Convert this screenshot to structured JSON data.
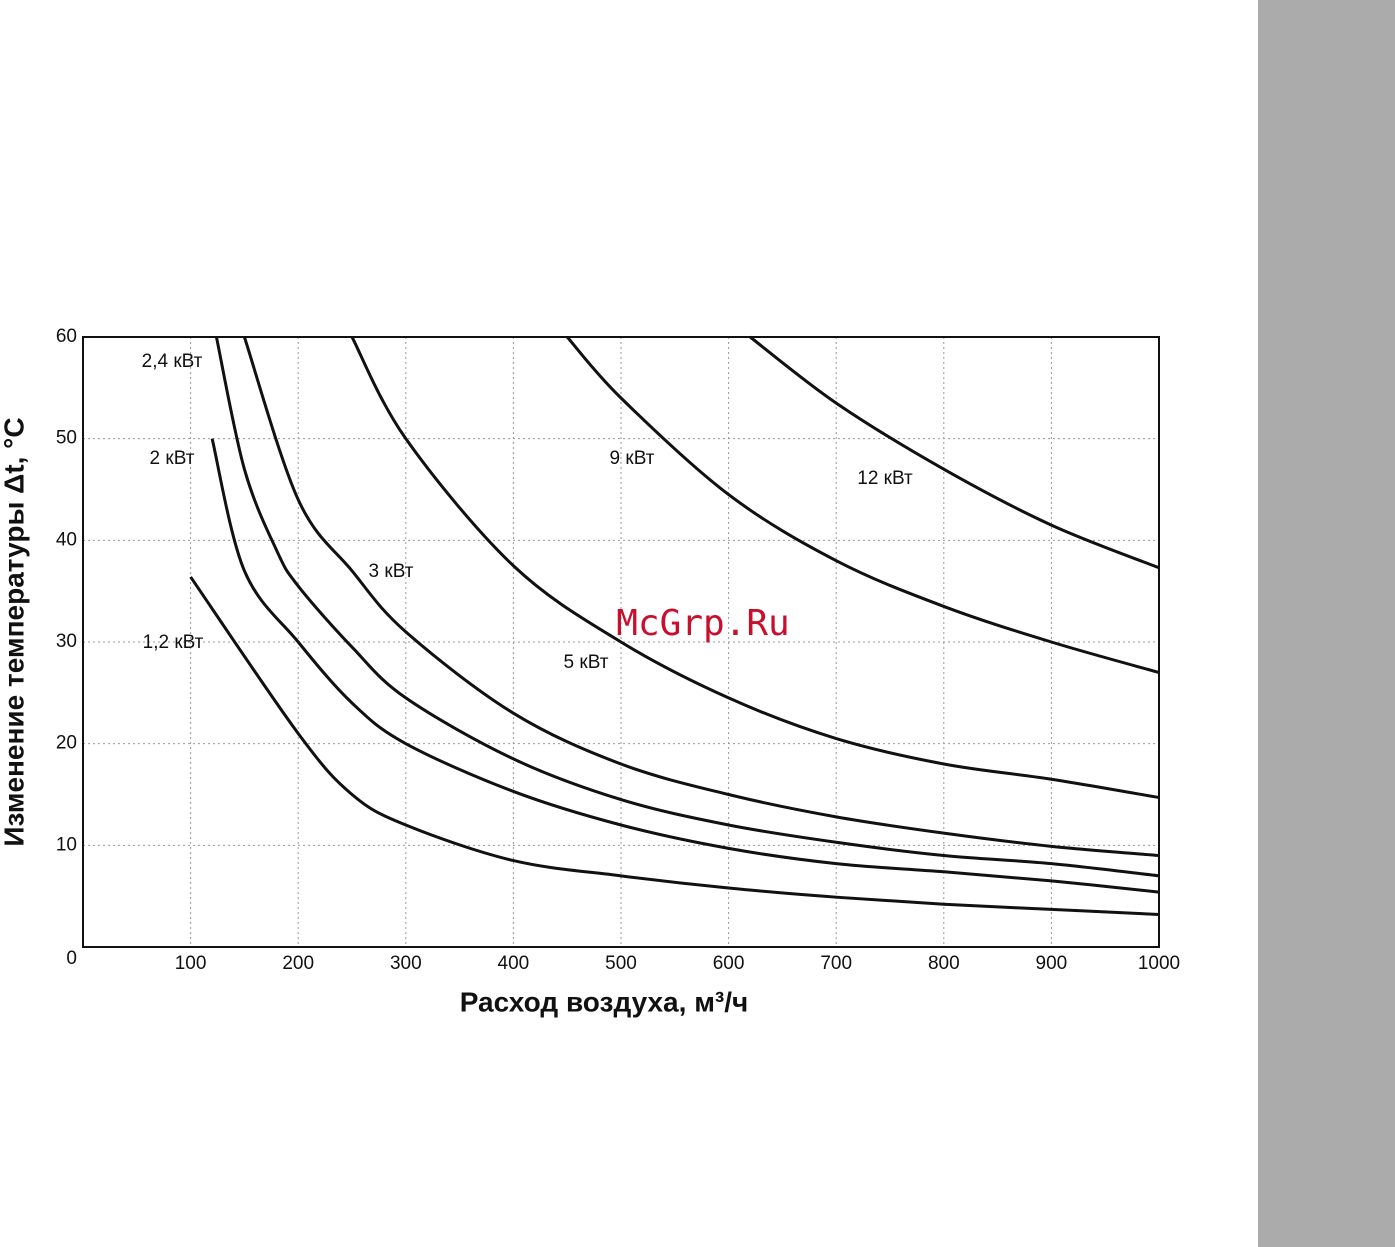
{
  "chart_data": {
    "type": "line",
    "x_label": "Расход воздуха, м³/ч",
    "y_label": "Изменение температуры Δt, °C",
    "watermark": "McGrp.Ru",
    "xlim": [
      0,
      1000
    ],
    "ylim": [
      0,
      60
    ],
    "xticks": [
      100,
      200,
      300,
      400,
      500,
      600,
      700,
      800,
      900,
      1000
    ],
    "yticks": [
      0,
      10,
      20,
      30,
      40,
      50,
      60
    ],
    "grid": true,
    "series": [
      {
        "name": "1,2 кВт",
        "color": "#111111",
        "x": [
          100,
          200,
          250,
          300,
          400,
          500,
          600,
          700,
          800,
          900,
          1000
        ],
        "values": [
          36.4,
          21,
          15,
          12,
          8.5,
          7,
          5.8,
          4.9,
          4.2,
          3.7,
          3.2
        ]
      },
      {
        "name": "2 кВт",
        "color": "#111111",
        "x": [
          120,
          150,
          200,
          250,
          300,
          400,
          500,
          600,
          700,
          800,
          900,
          1000
        ],
        "values": [
          50,
          37,
          30,
          24,
          20,
          15.3,
          12,
          9.7,
          8.2,
          7.4,
          6.5,
          5.4
        ]
      },
      {
        "name": "2,4 кВт",
        "color": "#111111",
        "x": [
          124,
          150,
          180,
          200,
          250,
          300,
          400,
          500,
          600,
          700,
          800,
          900,
          1000
        ],
        "values": [
          60,
          47,
          39,
          35.5,
          29.5,
          24.5,
          18.5,
          14.5,
          12,
          10.3,
          9,
          8.2,
          7
        ]
      },
      {
        "name": "3 кВт",
        "color": "#111111",
        "x": [
          150,
          200,
          250,
          300,
          400,
          500,
          600,
          700,
          800,
          900,
          1000
        ],
        "values": [
          60,
          44,
          37,
          31,
          23,
          18,
          15,
          12.8,
          11.2,
          9.9,
          9
        ]
      },
      {
        "name": "5 кВт",
        "color": "#111111",
        "x": [
          250,
          300,
          400,
          500,
          600,
          700,
          800,
          900,
          1000
        ],
        "values": [
          60,
          50,
          37.5,
          30,
          24.5,
          20.5,
          18,
          16.5,
          14.7
        ]
      },
      {
        "name": "9 кВт",
        "color": "#111111",
        "x": [
          450,
          500,
          600,
          700,
          800,
          900,
          1000
        ],
        "values": [
          60,
          54,
          44.5,
          38,
          33.5,
          30,
          27
        ]
      },
      {
        "name": "12 кВт",
        "color": "#111111",
        "x": [
          620,
          700,
          800,
          900,
          1000
        ],
        "values": [
          60,
          53.5,
          47,
          41.5,
          37.3
        ]
      }
    ]
  }
}
